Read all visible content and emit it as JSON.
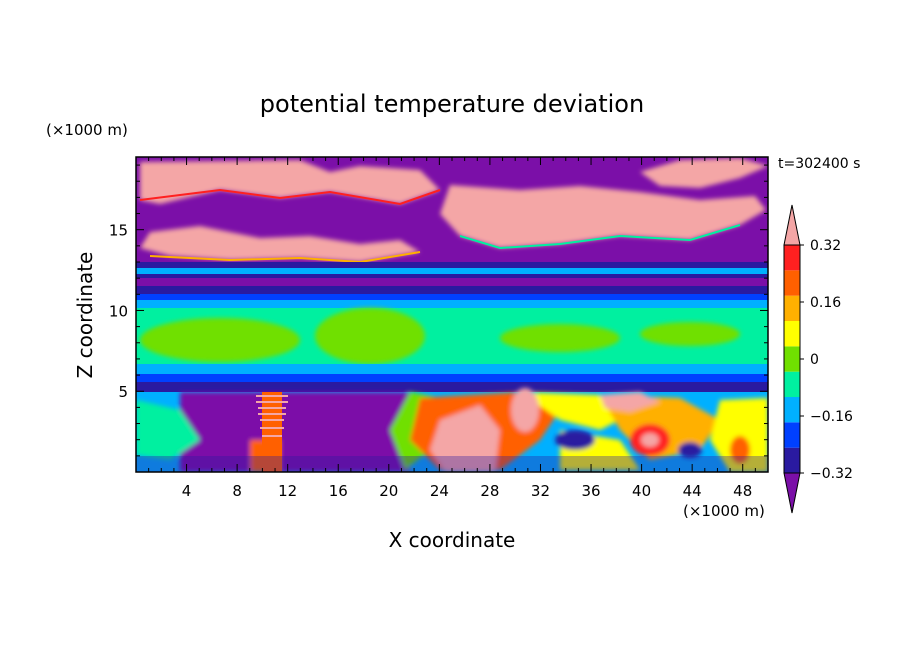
{
  "chart_data": {
    "type": "heatmap",
    "title": "potential temperature deviation",
    "xlabel": "X coordinate",
    "ylabel": "Z coordinate",
    "x_unit": "(×1000 m)",
    "y_unit": "(×1000 m)",
    "time_label": "t=302400 s",
    "xlim": [
      0,
      50
    ],
    "ylim": [
      0,
      19.5
    ],
    "x_ticks": [
      4,
      8,
      12,
      16,
      20,
      24,
      28,
      32,
      36,
      40,
      44,
      48
    ],
    "y_ticks": [
      5,
      10,
      15
    ],
    "colorbar": {
      "levels": [
        -0.4,
        -0.32,
        -0.24,
        -0.16,
        -0.08,
        0,
        0.08,
        0.16,
        0.24,
        0.32,
        0.4
      ],
      "labels": [
        "-0.32",
        "-0.16",
        "0",
        "0.16",
        "0.32"
      ],
      "label_values": [
        -0.32,
        -0.16,
        0,
        0.16,
        0.32
      ],
      "colors": [
        "#7b0fa8",
        "#2a1aa0",
        "#0040ff",
        "#00b0ff",
        "#00f0a0",
        "#70e000",
        "#ffff00",
        "#ffb000",
        "#ff6000",
        "#ff2020",
        "#f4a6a6"
      ],
      "extend": "both"
    },
    "layers": [
      {
        "z": [
          0,
          5
        ],
        "description_key": "lower convective layer"
      },
      {
        "z": [
          5,
          10.5
        ],
        "value": 0.02
      },
      {
        "z": [
          10.5,
          13.5
        ],
        "value": -0.25
      },
      {
        "z": [
          13.5,
          19.5
        ],
        "value": -0.45
      }
    ]
  }
}
